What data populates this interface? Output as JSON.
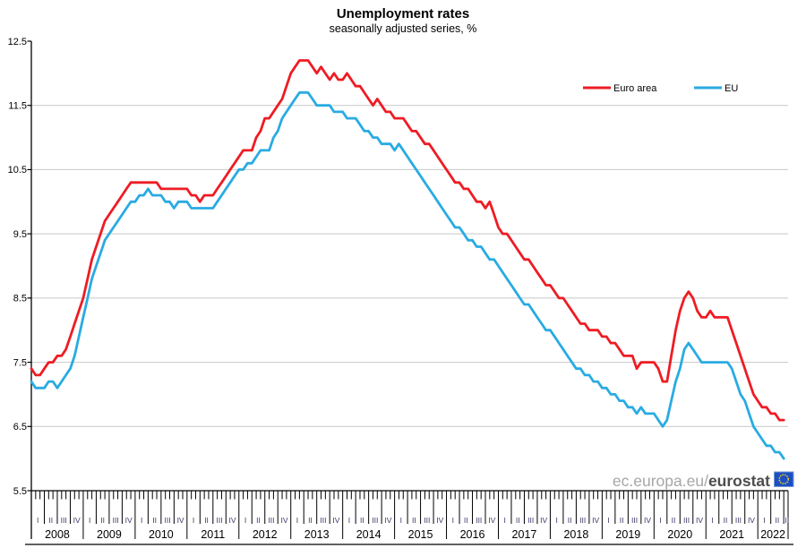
{
  "title": "Unemployment rates",
  "subtitle": "seasonally adjusted series, %",
  "watermark": {
    "prefix": "ec.europa.eu/",
    "brand": "eurostat"
  },
  "legend": [
    {
      "label": "Euro area",
      "color": "#ee1c23"
    },
    {
      "label": "EU",
      "color": "#29abe2"
    }
  ],
  "colors": {
    "grid": "#c8c8c8",
    "axis": "#000000",
    "quarter_label": "#3a3a6a",
    "year_label": "#000000",
    "logo_blue": "#1b4fc4",
    "logo_border": "#7a9ad2",
    "logo_stars": "#ffd617"
  },
  "chart_data": {
    "type": "line",
    "title": "Unemployment rates",
    "subtitle": "seasonally adjusted series, %",
    "xlabel": "",
    "ylabel": "",
    "x_unit": "month",
    "x_start": "2008-01",
    "x_end": "2022-07",
    "ylim": [
      5.5,
      12.5
    ],
    "yticks": [
      5.5,
      6.5,
      7.5,
      8.5,
      9.5,
      10.5,
      11.5,
      12.5
    ],
    "gridlines": [
      6.5,
      7.5,
      8.5,
      9.5,
      10.5,
      11.5
    ],
    "grid": "horizontal",
    "legend_position": "top-right",
    "years": [
      2008,
      2009,
      2010,
      2011,
      2012,
      2013,
      2014,
      2015,
      2016,
      2017,
      2018,
      2019,
      2020,
      2021,
      2022
    ],
    "quarter_labels": [
      "I",
      "II",
      "III",
      "IV"
    ],
    "series": [
      {
        "name": "Euro area",
        "color": "#ee1c23",
        "values": [
          7.4,
          7.3,
          7.3,
          7.4,
          7.5,
          7.5,
          7.6,
          7.6,
          7.7,
          7.9,
          8.1,
          8.3,
          8.5,
          8.8,
          9.1,
          9.3,
          9.5,
          9.7,
          9.8,
          9.9,
          10.0,
          10.1,
          10.2,
          10.3,
          10.3,
          10.3,
          10.3,
          10.3,
          10.3,
          10.3,
          10.2,
          10.2,
          10.2,
          10.2,
          10.2,
          10.2,
          10.2,
          10.1,
          10.1,
          10.0,
          10.1,
          10.1,
          10.1,
          10.2,
          10.3,
          10.4,
          10.5,
          10.6,
          10.7,
          10.8,
          10.8,
          10.8,
          11.0,
          11.1,
          11.3,
          11.3,
          11.4,
          11.5,
          11.6,
          11.8,
          12.0,
          12.1,
          12.2,
          12.2,
          12.2,
          12.1,
          12.0,
          12.1,
          12.0,
          11.9,
          12.0,
          11.9,
          11.9,
          12.0,
          11.9,
          11.8,
          11.8,
          11.7,
          11.6,
          11.5,
          11.6,
          11.5,
          11.4,
          11.4,
          11.3,
          11.3,
          11.3,
          11.2,
          11.1,
          11.1,
          11.0,
          10.9,
          10.9,
          10.8,
          10.7,
          10.6,
          10.5,
          10.4,
          10.3,
          10.3,
          10.2,
          10.2,
          10.1,
          10.0,
          10.0,
          9.9,
          10.0,
          9.8,
          9.6,
          9.5,
          9.5,
          9.4,
          9.3,
          9.2,
          9.1,
          9.1,
          9.0,
          8.9,
          8.8,
          8.7,
          8.7,
          8.6,
          8.5,
          8.5,
          8.4,
          8.3,
          8.2,
          8.1,
          8.1,
          8.0,
          8.0,
          8.0,
          7.9,
          7.9,
          7.8,
          7.8,
          7.7,
          7.6,
          7.6,
          7.6,
          7.4,
          7.5,
          7.5,
          7.5,
          7.5,
          7.4,
          7.2,
          7.2,
          7.6,
          8.0,
          8.3,
          8.5,
          8.6,
          8.5,
          8.3,
          8.2,
          8.2,
          8.3,
          8.2,
          8.2,
          8.2,
          8.2,
          8.0,
          7.8,
          7.6,
          7.4,
          7.2,
          7.0,
          6.9,
          6.8,
          6.8,
          6.7,
          6.7,
          6.6,
          6.6
        ]
      },
      {
        "name": "EU",
        "color": "#29abe2",
        "values": [
          7.2,
          7.1,
          7.1,
          7.1,
          7.2,
          7.2,
          7.1,
          7.2,
          7.3,
          7.4,
          7.6,
          7.9,
          8.2,
          8.5,
          8.8,
          9.0,
          9.2,
          9.4,
          9.5,
          9.6,
          9.7,
          9.8,
          9.9,
          10.0,
          10.0,
          10.1,
          10.1,
          10.2,
          10.1,
          10.1,
          10.1,
          10.0,
          10.0,
          9.9,
          10.0,
          10.0,
          10.0,
          9.9,
          9.9,
          9.9,
          9.9,
          9.9,
          9.9,
          10.0,
          10.1,
          10.2,
          10.3,
          10.4,
          10.5,
          10.5,
          10.6,
          10.6,
          10.7,
          10.8,
          10.8,
          10.8,
          11.0,
          11.1,
          11.3,
          11.4,
          11.5,
          11.6,
          11.7,
          11.7,
          11.7,
          11.6,
          11.5,
          11.5,
          11.5,
          11.5,
          11.4,
          11.4,
          11.4,
          11.3,
          11.3,
          11.3,
          11.2,
          11.1,
          11.1,
          11.0,
          11.0,
          10.9,
          10.9,
          10.9,
          10.8,
          10.9,
          10.8,
          10.7,
          10.6,
          10.5,
          10.4,
          10.3,
          10.2,
          10.1,
          10.0,
          9.9,
          9.8,
          9.7,
          9.6,
          9.6,
          9.5,
          9.4,
          9.4,
          9.3,
          9.3,
          9.2,
          9.1,
          9.1,
          9.0,
          8.9,
          8.8,
          8.7,
          8.6,
          8.5,
          8.4,
          8.4,
          8.3,
          8.2,
          8.1,
          8.0,
          8.0,
          7.9,
          7.8,
          7.7,
          7.6,
          7.5,
          7.4,
          7.4,
          7.3,
          7.3,
          7.2,
          7.2,
          7.1,
          7.1,
          7.0,
          7.0,
          6.9,
          6.9,
          6.8,
          6.8,
          6.7,
          6.8,
          6.7,
          6.7,
          6.7,
          6.6,
          6.5,
          6.6,
          6.9,
          7.2,
          7.4,
          7.7,
          7.8,
          7.7,
          7.6,
          7.5,
          7.5,
          7.5,
          7.5,
          7.5,
          7.5,
          7.5,
          7.4,
          7.2,
          7.0,
          6.9,
          6.7,
          6.5,
          6.4,
          6.3,
          6.2,
          6.2,
          6.1,
          6.1,
          6.0
        ]
      }
    ]
  }
}
